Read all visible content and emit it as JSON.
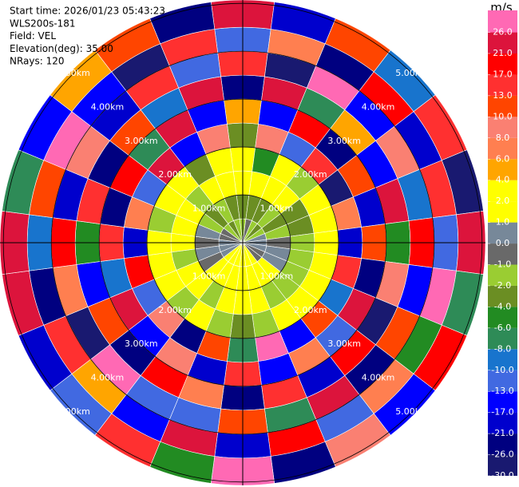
{
  "chart_data": {
    "type": "ppi",
    "header": [
      "Start time: 2026/01/23 05:43:23",
      "WLS200s-181",
      "Field: VEL",
      "Elevation(deg): 35.00",
      "NRays: 120"
    ],
    "colorbar_title": "m/s",
    "colorbar_ticks": [
      {
        "value": -30,
        "label": "-30.0"
      },
      {
        "value": -26,
        "label": "-26.0"
      },
      {
        "value": -21,
        "label": "-21.0"
      },
      {
        "value": -17,
        "label": "-17.0"
      },
      {
        "value": -13,
        "label": "-13.0"
      },
      {
        "value": -10,
        "label": "-10.0"
      },
      {
        "value": -8,
        "label": "-8.0"
      },
      {
        "value": -6,
        "label": "-6.0"
      },
      {
        "value": -4,
        "label": "-4.0"
      },
      {
        "value": -2,
        "label": "-2.0"
      },
      {
        "value": -1,
        "label": "-1.0"
      },
      {
        "value": 0,
        "label": "0.0"
      },
      {
        "value": 1,
        "label": "1.0"
      },
      {
        "value": 2,
        "label": "2.0"
      },
      {
        "value": 4,
        "label": "4.0"
      },
      {
        "value": 6,
        "label": "6.0"
      },
      {
        "value": 8,
        "label": "8.0"
      },
      {
        "value": 10,
        "label": "10.0"
      },
      {
        "value": 13,
        "label": "13.0"
      },
      {
        "value": 17,
        "label": "17.0"
      },
      {
        "value": 21,
        "label": "21.0"
      },
      {
        "value": 26,
        "label": "26.0"
      }
    ],
    "colors": [
      "#191970",
      "#000080",
      "#0000cd",
      "#0000ff",
      "#4169e1",
      "#1874cd",
      "#2e8b57",
      "#228b22",
      "#6b8e23",
      "#9acd32",
      "#696969",
      "#778899",
      "#ffff00",
      "#ffff00",
      "#ffa500",
      "#ff7f50",
      "#fa8072",
      "#ff4500",
      "#ff3030",
      "#ff0000",
      "#dc143c",
      "#ff69b4"
    ],
    "rlim": [
      0,
      5.07
    ],
    "rings": [
      {
        "value": 1,
        "label": "1.00km"
      },
      {
        "value": 2,
        "label": "2.00km"
      },
      {
        "value": 3,
        "label": "3.00km"
      },
      {
        "value": 4,
        "label": "4.00km"
      },
      {
        "value": 5,
        "label": "5.00km"
      }
    ],
    "azimuth_deg": [
      0,
      15,
      30,
      45,
      60,
      75,
      90,
      105,
      120,
      135,
      150,
      165,
      180,
      195,
      210,
      225,
      240,
      255,
      270,
      285,
      300,
      315,
      330,
      345
    ],
    "range_edges_km": [
      0,
      0.5,
      1,
      1.5,
      2,
      2.5,
      3,
      3.5,
      4,
      4.5,
      5.07
    ],
    "values": [
      [
        -1.5,
        -2.5,
        3,
        2.5,
        -3,
        5,
        -25,
        15,
        -12,
        22
      ],
      [
        -0.5,
        -2.5,
        2.5,
        -5,
        9,
        -15,
        23,
        -28,
        7,
        -19
      ],
      [
        -1.5,
        -3,
        3,
        1.5,
        -11,
        18,
        -7,
        27,
        -22,
        11
      ],
      [
        -2.5,
        -1.5,
        3,
        -2,
        14,
        -24,
        5,
        -16,
        20,
        -9
      ],
      [
        -1.5,
        -2.5,
        -3,
        2.5,
        -27,
        12,
        -14,
        8,
        -21,
        16
      ],
      [
        0.5,
        -1.5,
        -2.5,
        3,
        7,
        -18,
        25,
        -10,
        14,
        -29
      ],
      [
        0.5,
        -0.5,
        -1.5,
        3,
        -20,
        10,
        -6,
        19,
        -13,
        24
      ],
      [
        0.5,
        0.5,
        -1.5,
        2.5,
        15,
        -23,
        9,
        -17,
        28,
        -8
      ],
      [
        -0.5,
        0.5,
        -1.5,
        3,
        -9,
        21,
        -28,
        12,
        -5,
        17
      ],
      [
        -0.5,
        2.5,
        -1.5,
        3,
        11,
        -12,
        19,
        -25,
        6,
        -15
      ],
      [
        1.5,
        3,
        -1.5,
        2.5,
        -16,
        7,
        -20,
        23,
        -11,
        9
      ],
      [
        2.5,
        3,
        3,
        -1.5,
        26,
        -14,
        13,
        -7,
        18,
        -22
      ],
      [
        3,
        3,
        2.5,
        -2.5,
        -8,
        16,
        -26,
        10,
        -19,
        27
      ],
      [
        3,
        2.5,
        3,
        -1.5,
        12,
        -21,
        7,
        -13,
        25,
        -6
      ],
      [
        2.5,
        3,
        -1.5,
        3,
        -24,
        9,
        18,
        -11,
        -17,
        14
      ],
      [
        1.5,
        3,
        2.5,
        -2,
        8,
        -15,
        -22,
        26,
        4,
        -12
      ],
      [
        0.5,
        -0.5,
        3,
        2.5,
        -13,
        23,
        11,
        -27,
        15,
        -18
      ],
      [
        0.5,
        0.5,
        -1.5,
        3,
        17,
        -9,
        -16,
        6,
        -23,
        21
      ],
      [
        0.5,
        -0.5,
        2.5,
        3,
        -21,
        14,
        -5,
        20,
        -10,
        25
      ],
      [
        -0.5,
        0.5,
        3,
        -1.5,
        6,
        -26,
        16,
        -19,
        11,
        -7
      ],
      [
        -0.5,
        -1.5,
        3,
        2.5,
        -11,
        19,
        -24,
        9,
        27,
        -14
      ],
      [
        -1.5,
        -2.5,
        -2,
        3,
        22,
        -8,
        12,
        -20,
        -16,
        5
      ],
      [
        -2.5,
        -1.5,
        3,
        -2.5,
        -14,
        25,
        -9,
        15,
        -28,
        10
      ],
      [
        -1.5,
        -2.5,
        3,
        2.5,
        9,
        -17,
        21,
        -12,
        13,
        -25
      ]
    ]
  }
}
